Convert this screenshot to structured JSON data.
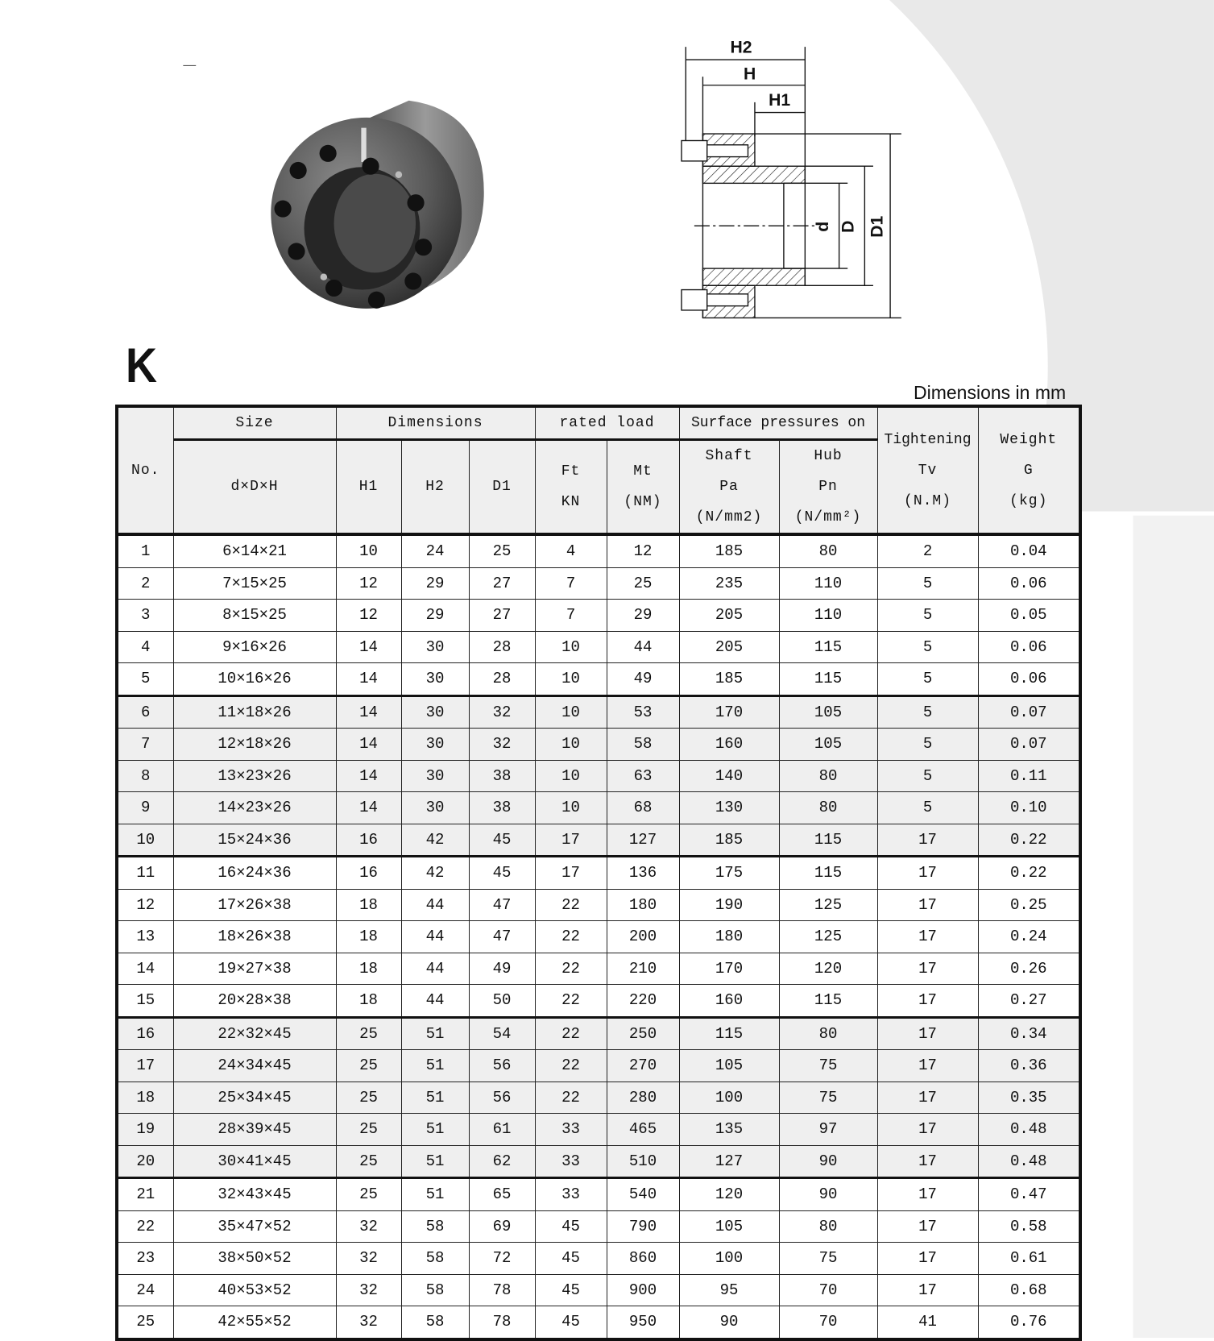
{
  "heading": "K",
  "units_note": "Dimensions in mm",
  "drawing_labels": {
    "H2": "H2",
    "H": "H",
    "H1": "H1",
    "d": "d",
    "D": "D",
    "D1": "D1"
  },
  "table": {
    "header": {
      "no": "No.",
      "size": "Size",
      "size_sub": "d×D×H",
      "dimensions": "Dimensions",
      "h1": "H1",
      "h2": "H2",
      "d1": "D1",
      "rated_load": "rated load",
      "ft": "Ft",
      "ft_unit": "KN",
      "mt": "Mt",
      "mt_unit": "(NM)",
      "surface": "Surface pressures on",
      "shaft": "Shaft",
      "pa": "Pa",
      "pa_unit": "(N/mm2)",
      "hub": "Hub",
      "pn": "Pn",
      "pn_unit": "(N/mm²)",
      "tightening": "Tightening",
      "tv": "Tv",
      "tv_unit": "(N.M)",
      "weight": "Weight",
      "g": "G",
      "g_unit": "(kg)"
    },
    "columns": [
      "no",
      "size",
      "h1",
      "h2",
      "d1",
      "ft",
      "mt",
      "pa",
      "pn",
      "tv",
      "g"
    ],
    "rows": [
      [
        "1",
        "6×14×21",
        "10",
        "24",
        "25",
        "4",
        "12",
        "185",
        "80",
        "2",
        "0.04"
      ],
      [
        "2",
        "7×15×25",
        "12",
        "29",
        "27",
        "7",
        "25",
        "235",
        "110",
        "5",
        "0.06"
      ],
      [
        "3",
        "8×15×25",
        "12",
        "29",
        "27",
        "7",
        "29",
        "205",
        "110",
        "5",
        "0.05"
      ],
      [
        "4",
        "9×16×26",
        "14",
        "30",
        "28",
        "10",
        "44",
        "205",
        "115",
        "5",
        "0.06"
      ],
      [
        "5",
        "10×16×26",
        "14",
        "30",
        "28",
        "10",
        "49",
        "185",
        "115",
        "5",
        "0.06"
      ],
      [
        "6",
        "11×18×26",
        "14",
        "30",
        "32",
        "10",
        "53",
        "170",
        "105",
        "5",
        "0.07"
      ],
      [
        "7",
        "12×18×26",
        "14",
        "30",
        "32",
        "10",
        "58",
        "160",
        "105",
        "5",
        "0.07"
      ],
      [
        "8",
        "13×23×26",
        "14",
        "30",
        "38",
        "10",
        "63",
        "140",
        "80",
        "5",
        "0.11"
      ],
      [
        "9",
        "14×23×26",
        "14",
        "30",
        "38",
        "10",
        "68",
        "130",
        "80",
        "5",
        "0.10"
      ],
      [
        "10",
        "15×24×36",
        "16",
        "42",
        "45",
        "17",
        "127",
        "185",
        "115",
        "17",
        "0.22"
      ],
      [
        "11",
        "16×24×36",
        "16",
        "42",
        "45",
        "17",
        "136",
        "175",
        "115",
        "17",
        "0.22"
      ],
      [
        "12",
        "17×26×38",
        "18",
        "44",
        "47",
        "22",
        "180",
        "190",
        "125",
        "17",
        "0.25"
      ],
      [
        "13",
        "18×26×38",
        "18",
        "44",
        "47",
        "22",
        "200",
        "180",
        "125",
        "17",
        "0.24"
      ],
      [
        "14",
        "19×27×38",
        "18",
        "44",
        "49",
        "22",
        "210",
        "170",
        "120",
        "17",
        "0.26"
      ],
      [
        "15",
        "20×28×38",
        "18",
        "44",
        "50",
        "22",
        "220",
        "160",
        "115",
        "17",
        "0.27"
      ],
      [
        "16",
        "22×32×45",
        "25",
        "51",
        "54",
        "22",
        "250",
        "115",
        "80",
        "17",
        "0.34"
      ],
      [
        "17",
        "24×34×45",
        "25",
        "51",
        "56",
        "22",
        "270",
        "105",
        "75",
        "17",
        "0.36"
      ],
      [
        "18",
        "25×34×45",
        "25",
        "51",
        "56",
        "22",
        "280",
        "100",
        "75",
        "17",
        "0.35"
      ],
      [
        "19",
        "28×39×45",
        "25",
        "51",
        "61",
        "33",
        "465",
        "135",
        "97",
        "17",
        "0.48"
      ],
      [
        "20",
        "30×41×45",
        "25",
        "51",
        "62",
        "33",
        "510",
        "127",
        "90",
        "17",
        "0.48"
      ],
      [
        "21",
        "32×43×45",
        "25",
        "51",
        "65",
        "33",
        "540",
        "120",
        "90",
        "17",
        "0.47"
      ],
      [
        "22",
        "35×47×52",
        "32",
        "58",
        "69",
        "45",
        "790",
        "105",
        "80",
        "17",
        "0.58"
      ],
      [
        "23",
        "38×50×52",
        "32",
        "58",
        "72",
        "45",
        "860",
        "100",
        "75",
        "17",
        "0.61"
      ],
      [
        "24",
        "40×53×52",
        "32",
        "58",
        "78",
        "45",
        "900",
        "95",
        "70",
        "17",
        "0.68"
      ],
      [
        "25",
        "42×55×52",
        "32",
        "58",
        "78",
        "45",
        "950",
        "90",
        "70",
        "41",
        "0.76"
      ]
    ]
  },
  "colors": {
    "shade": "#efefef",
    "background_arc": "#e9e9e9",
    "rule": "#111111"
  }
}
